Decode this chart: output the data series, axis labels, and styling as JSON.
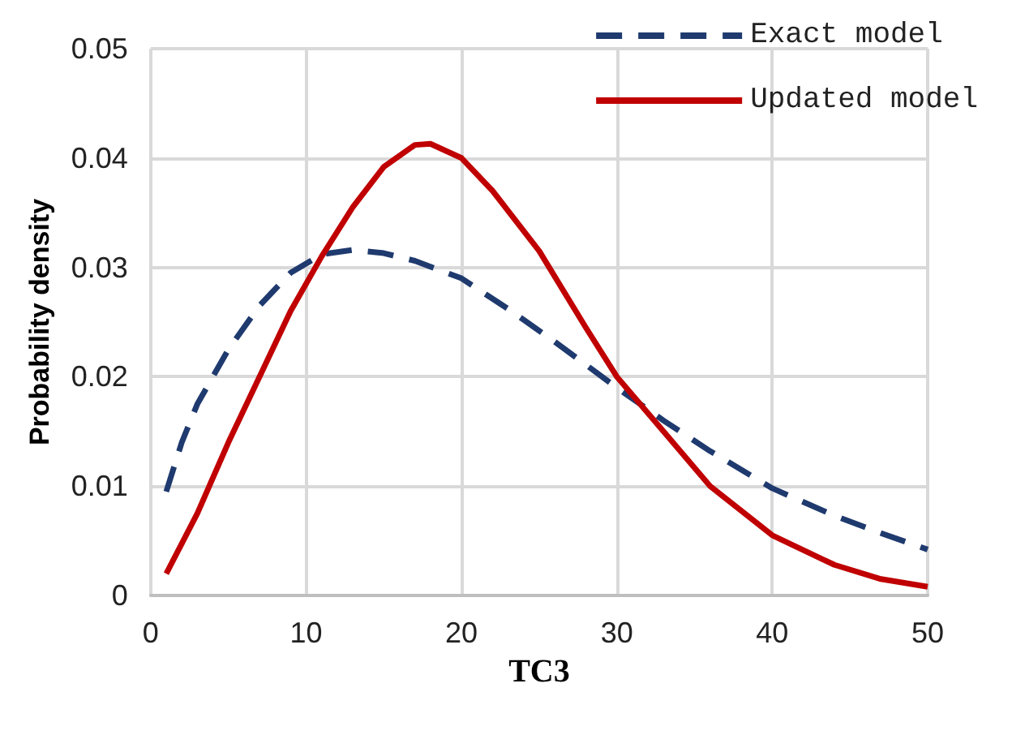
{
  "chart_data": {
    "type": "line",
    "xlabel": "TC3",
    "ylabel": "Probability density",
    "xlim": [
      0,
      50
    ],
    "xticks": [
      0,
      10,
      20,
      30,
      40,
      50
    ],
    "ylim": [
      0,
      0.05
    ],
    "yticks": [
      0,
      0.01,
      0.02,
      0.03,
      0.04,
      0.05
    ],
    "grid": true,
    "legend": "top right",
    "marker": "none",
    "series": [
      {
        "name": "Exact model",
        "color": "#1f3a6e",
        "line_style": "dashed",
        "x": [
          1,
          2,
          3,
          5,
          7,
          9,
          11,
          13,
          15,
          17,
          20,
          23,
          26,
          30,
          33,
          36,
          40,
          44,
          47,
          50
        ],
        "values": [
          0.0095,
          0.014,
          0.0175,
          0.0225,
          0.0265,
          0.0295,
          0.0312,
          0.0316,
          0.0313,
          0.0306,
          0.029,
          0.0262,
          0.0232,
          0.019,
          0.016,
          0.0132,
          0.0098,
          0.0073,
          0.0057,
          0.0042
        ]
      },
      {
        "name": "Updated model",
        "color": "#c00000",
        "line_style": "solid",
        "x": [
          1,
          3,
          5,
          7,
          9,
          11,
          13,
          15,
          17,
          18,
          20,
          22,
          25,
          28,
          30,
          33,
          36,
          40,
          44,
          47,
          50
        ],
        "values": [
          0.002,
          0.0075,
          0.014,
          0.02,
          0.026,
          0.031,
          0.0355,
          0.0392,
          0.0412,
          0.0413,
          0.04,
          0.037,
          0.0315,
          0.0245,
          0.02,
          0.015,
          0.01,
          0.0055,
          0.0028,
          0.0015,
          0.0008
        ]
      }
    ]
  }
}
